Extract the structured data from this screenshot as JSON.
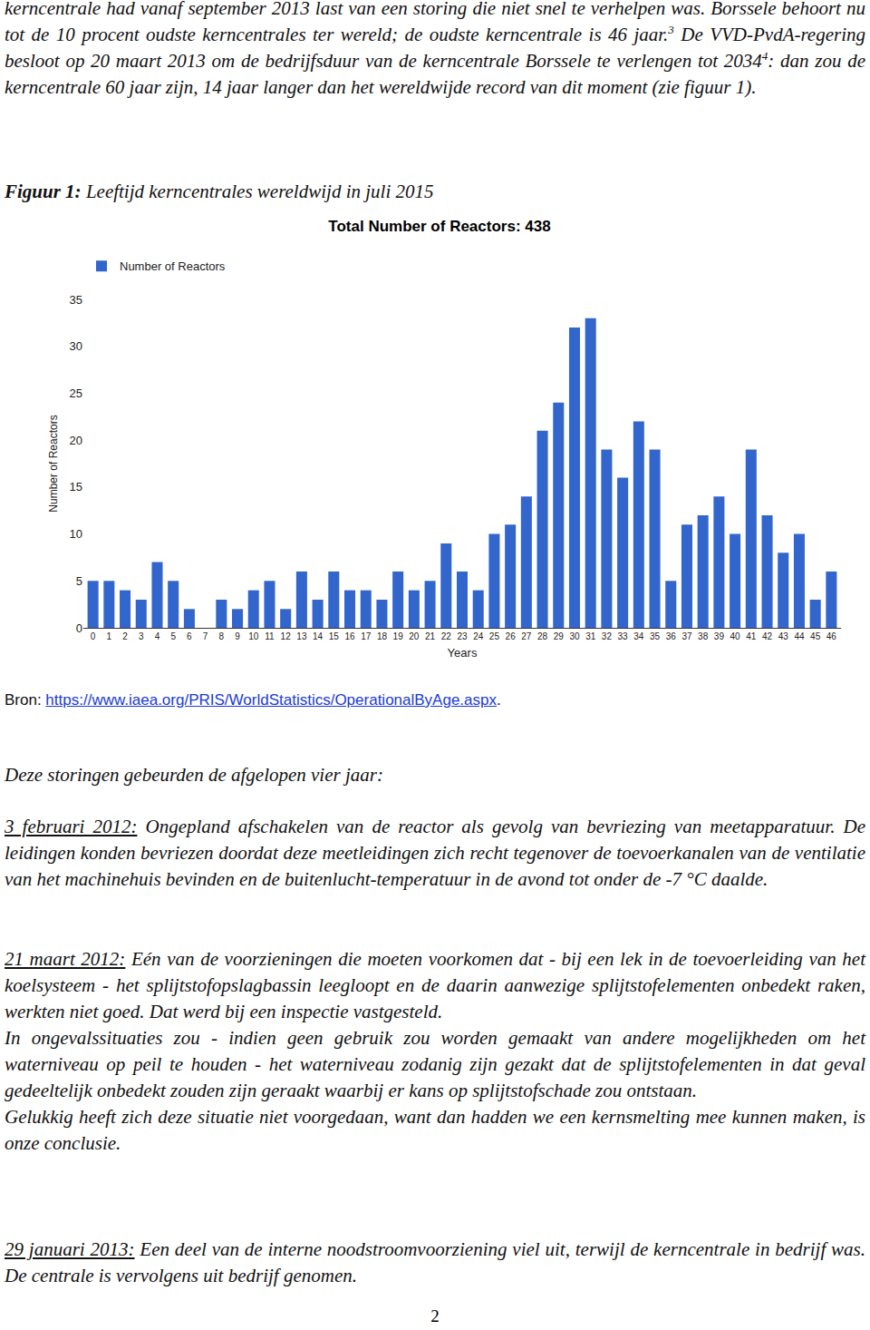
{
  "document": {
    "intro": [
      {
        "text": "kerncentrale had vanaf september 2013 last van een storing die niet snel te verhelpen was. Borssele behoort nu tot de 10 procent oudste kerncentrales ter wereld; de oudste kerncentrale is 46 jaar."
      },
      {
        "text": "3",
        "style": "sup"
      },
      {
        "text": " De VVD-PvdA-regering besloot op 20 maart 2013 om de bedrijfsduur van de kerncentrale Borssele te verlengen tot 2034"
      },
      {
        "text": "4",
        "style": "sup"
      },
      {
        "text": ": dan zou de kerncentrale 60 jaar zijn, 14 jaar langer dan het wereldwijde record van dit moment (zie figuur 1)."
      }
    ],
    "figure_caption": [
      {
        "text": "Figuur 1:",
        "style": "bold"
      },
      {
        "text": " Leeftijd kerncentrales wereldwijd in juli 2015"
      }
    ],
    "source": [
      {
        "text": "Bron: "
      },
      {
        "text": "https://www.iaea.org/PRIS/WorldStatistics/OperationalByAge.aspx",
        "style": "link"
      },
      {
        "text": "."
      }
    ],
    "events_heading": "Deze storingen gebeurden de afgelopen vier jaar:",
    "events": [
      {
        "date": "3 februari 2012:",
        "paragraphs": [
          " Ongepland afschakelen van de reactor als gevolg van bevriezing van meetapparatuur. De leidingen konden bevriezen doordat deze meetleidingen zich recht tegenover de toevoerkanalen van de ventilatie van het machinehuis bevinden en de buitenlucht-temperatuur in de avond tot onder de -7 °C daalde."
        ]
      },
      {
        "date": "21 maart 2012:",
        "paragraphs": [
          " Eén van de voorzieningen die moeten voorkomen dat - bij een lek in de toevoerleiding van het koelsysteem - het splijtstofopslagbassin leegloopt en de daarin aanwezige splijtstofelementen onbedekt raken, werkten niet goed. Dat werd bij een inspectie vastgesteld.",
          "In ongevalssituaties zou - indien geen gebruik zou worden gemaakt van andere mogelijkheden om het waterniveau op peil te houden - het waterniveau zodanig zijn gezakt dat de splijtstofelementen in dat geval gedeeltelijk onbedekt zouden zijn geraakt waarbij er kans op splijtstofschade zou ontstaan.",
          "Gelukkig heeft zich deze situatie niet voorgedaan, want dan hadden we een kernsmelting mee kunnen maken, is onze conclusie."
        ]
      },
      {
        "date": "29 januari 2013:",
        "paragraphs": [
          " Een deel van de interne noodstroomvoorziening viel uit, terwijl de kerncentrale in bedrijf was. De centrale is vervolgens uit bedrijf genomen."
        ]
      }
    ],
    "page_number": "2"
  },
  "chart_data": {
    "type": "bar",
    "title": "Total Number of Reactors: 438",
    "x_label": "Years",
    "y_label": "Number of Reactors",
    "categories": [
      "0",
      "1",
      "2",
      "3",
      "4",
      "5",
      "6",
      "7",
      "8",
      "9",
      "10",
      "11",
      "12",
      "13",
      "14",
      "15",
      "16",
      "17",
      "18",
      "19",
      "20",
      "21",
      "22",
      "23",
      "24",
      "25",
      "26",
      "27",
      "28",
      "29",
      "30",
      "31",
      "32",
      "33",
      "34",
      "35",
      "36",
      "37",
      "38",
      "39",
      "40",
      "41",
      "42",
      "43",
      "44",
      "45",
      "46"
    ],
    "series": [
      {
        "name": "Number of Reactors",
        "color": "#3366cc",
        "values": [
          5,
          5,
          4,
          3,
          7,
          5,
          2,
          0,
          3,
          2,
          4,
          5,
          2,
          6,
          3,
          6,
          4,
          4,
          3,
          6,
          4,
          5,
          9,
          6,
          4,
          10,
          11,
          14,
          21,
          24,
          32,
          33,
          19,
          16,
          22,
          19,
          5,
          11,
          12,
          14,
          10,
          19,
          12,
          8,
          10,
          3,
          6
        ]
      }
    ],
    "ylim": [
      0,
      35
    ],
    "yticks": [
      0,
      5,
      10,
      15,
      20,
      25,
      30,
      35
    ],
    "grid": false,
    "legend": "top-left"
  }
}
